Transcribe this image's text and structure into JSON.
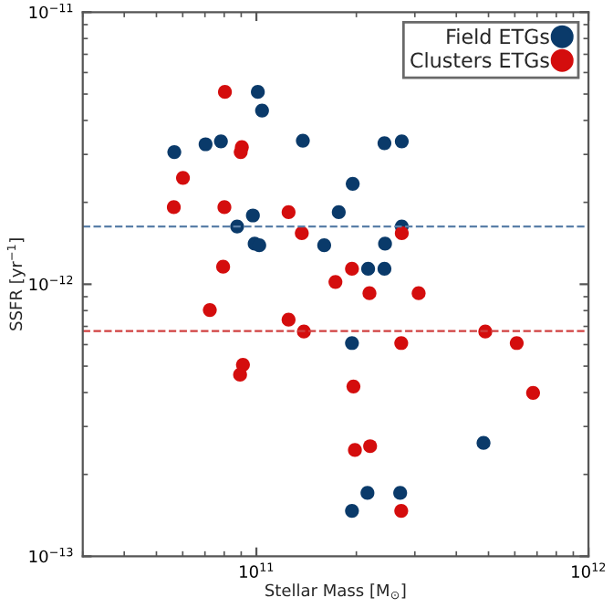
{
  "chart_data": {
    "type": "scatter",
    "xlabel": "Stellar Mass [M$_{⊙}$]",
    "ylabel": "SSFR [yr$^{−1}$]",
    "log": "xy",
    "xlim": [
      30000000000.0,
      1000000000000.0
    ],
    "ylim": [
      1e-13,
      1e-11
    ],
    "xticks": [
      {
        "value": 100000000000.0,
        "label": "10$^{11}$"
      },
      {
        "value": 1000000000000.0,
        "label": "10$^{12}$"
      }
    ],
    "yticks": [
      {
        "value": 1e-13,
        "label": "10$^{−13}$"
      },
      {
        "value": 1e-12,
        "label": "10$^{−12}$"
      },
      {
        "value": 1e-11,
        "label": "10$^{−11}$"
      }
    ],
    "grid": false,
    "legend": "top right",
    "marker": "circle",
    "series": [
      {
        "name": "Field ETGs",
        "color": "#0a3a6a",
        "x": [
          56600000000.0,
          70300000000.0,
          78200000000.0,
          101000000000.0,
          104000000000.0,
          138000000000.0,
          195000000000.0,
          243000000000.0,
          274000000000.0,
          87500000000.0,
          97600000000.0,
          98800000000.0,
          102000000000.0,
          160000000000.0,
          177000000000.0,
          217000000000.0,
          243000000000.0,
          244000000000.0,
          274000000000.0,
          194000000000.0,
          483000000000.0,
          216000000000.0,
          271000000000.0,
          194000000000.0
        ],
        "values": [
          3.06e-12,
          3.27e-12,
          3.35e-12,
          5.09e-12,
          4.35e-12,
          3.37e-12,
          2.34e-12,
          3.3e-12,
          3.35e-12,
          1.63e-12,
          1.79e-12,
          1.41e-12,
          1.39e-12,
          1.39e-12,
          1.84e-12,
          1.14e-12,
          1.14e-12,
          1.41e-12,
          1.63e-12,
          6.08e-13,
          2.61e-13,
          1.71e-13,
          1.71e-13,
          1.47e-13
        ]
      },
      {
        "name": "Clusters ETGs",
        "color": "#d40d0d",
        "x": [
          80400000000.0,
          90400000000.0,
          89700000000.0,
          60100000000.0,
          56400000000.0,
          80100000000.0,
          125000000000.0,
          137000000000.0,
          274000000000.0,
          79400000000.0,
          194000000000.0,
          173000000000.0,
          219000000000.0,
          308000000000.0,
          72400000000.0,
          125000000000.0,
          139000000000.0,
          273000000000.0,
          489000000000.0,
          608000000000.0,
          681000000000.0,
          91100000000.0,
          89300000000.0,
          196000000000.0,
          198000000000.0,
          220000000000.0,
          273000000000.0
        ],
        "values": [
          5.09e-12,
          3.19e-12,
          3.06e-12,
          2.46e-12,
          1.92e-12,
          1.92e-12,
          1.84e-12,
          1.54e-12,
          1.54e-12,
          1.16e-12,
          1.14e-12,
          1.02e-12,
          9.27e-13,
          9.27e-13,
          8.04e-13,
          7.41e-13,
          6.7e-13,
          6.08e-13,
          6.7e-13,
          6.08e-13,
          3.99e-13,
          5.06e-13,
          4.65e-13,
          4.21e-13,
          2.46e-13,
          2.54e-13,
          1.47e-13
        ]
      }
    ],
    "ref_lines": [
      {
        "axis": "y",
        "value": 1.63e-12,
        "color": "#5a7fa8",
        "line_style": "dashed"
      },
      {
        "axis": "y",
        "value": 6.73e-13,
        "color": "#d04040",
        "line_style": "dashed"
      }
    ]
  }
}
